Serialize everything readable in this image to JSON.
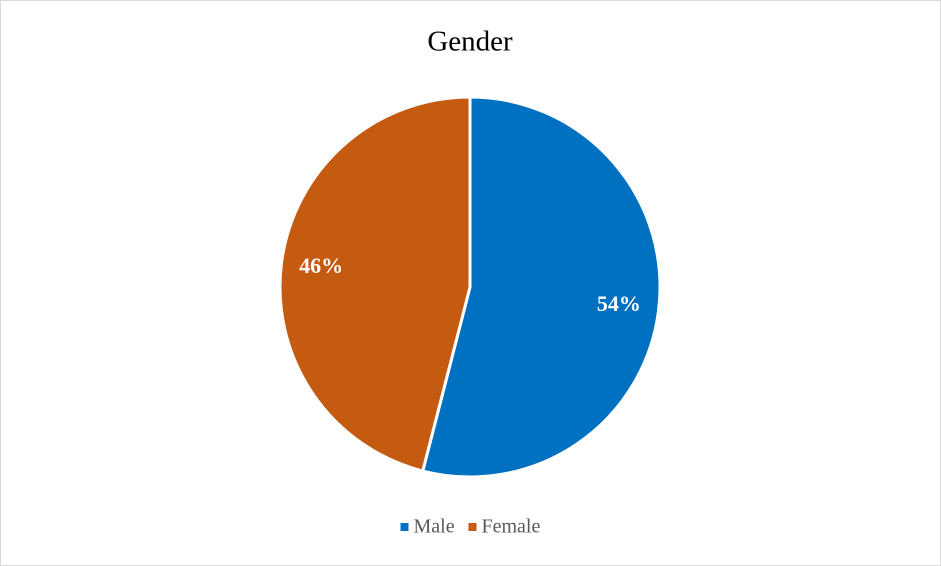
{
  "chart_data": {
    "type": "pie",
    "title": "Gender",
    "categories": [
      "Male",
      "Female"
    ],
    "values": [
      54,
      46
    ],
    "value_labels": [
      "54%",
      "46%"
    ],
    "colors": [
      "#0070c0",
      "#c55a11"
    ],
    "legend": "bottom"
  }
}
